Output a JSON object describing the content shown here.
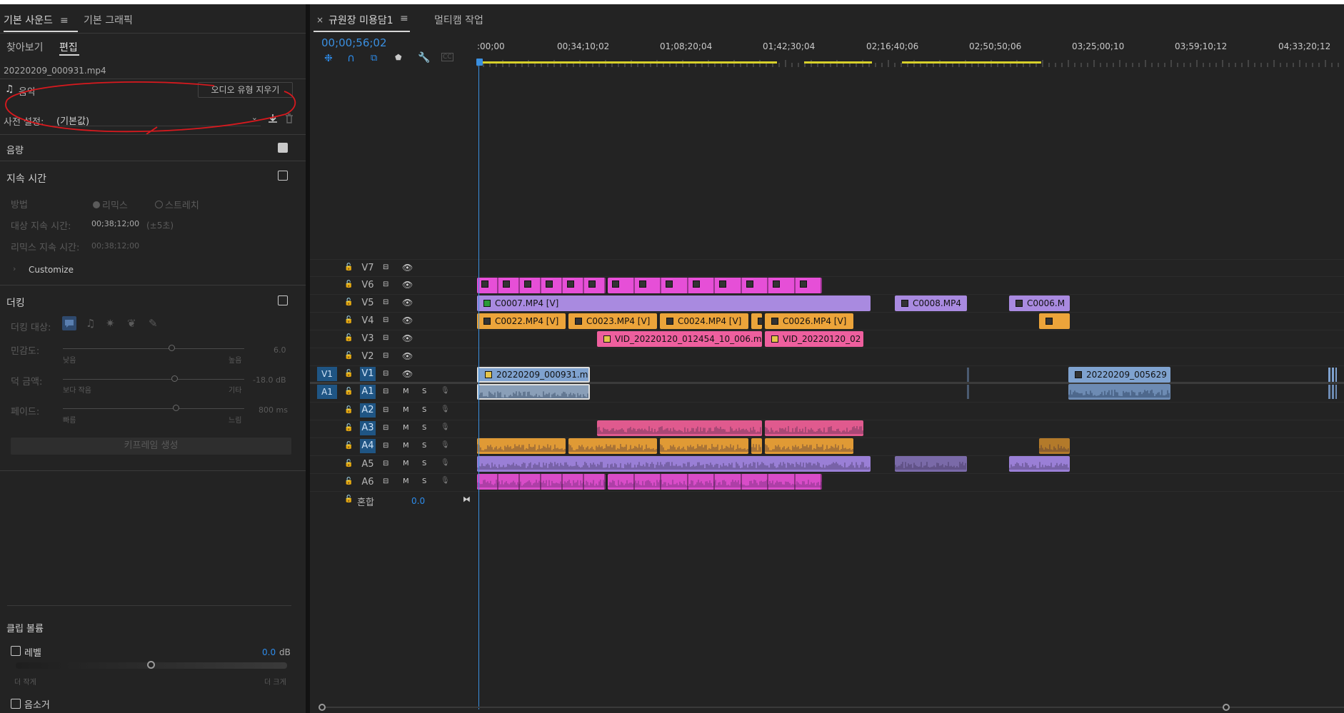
{
  "left_panel": {
    "tabs": [
      "기본 사운드",
      "기본 그래픽"
    ],
    "active_tab_menu": "≡",
    "subtabs": [
      "찾아보기",
      "편집"
    ],
    "filename": "20220209_000931.mp4",
    "music_label": "음악",
    "clear_type_button": "오디오 유형 지우기",
    "preset_label": "사전 설정:",
    "preset_value": "(기본값)",
    "loudness_label": "음량",
    "duration_section": "지속 시간",
    "method_label": "방법",
    "method_options": [
      "리믹스",
      "스트레치"
    ],
    "target_duration_label": "대상 지속 시간:",
    "target_duration_value": "00;38;12;00",
    "target_tolerance": "(±5초)",
    "remix_duration_label": "리믹스 지속 시간:",
    "remix_duration_value": "00;38;12;00",
    "customize_label": "Customize",
    "ducking_section": "더킹",
    "ducking_target_label": "더킹 대상:",
    "sensitivity_label": "민감도:",
    "sensitivity_low": "낮음",
    "sensitivity_high": "높음",
    "sensitivity_value": "6.0",
    "duck_amount_label": "덕 금액:",
    "duck_amount_low": "보다 작음",
    "duck_amount_high": "기타",
    "duck_amount_value": "-18.0 dB",
    "fade_label": "페이드:",
    "fade_low": "빠름",
    "fade_high": "느림",
    "fade_value": "800 ms",
    "generate_keyframes_button": "키프레임 생성",
    "clip_volume_section": "클립 볼륨",
    "level_label": "레벨",
    "level_value": "0.0",
    "level_unit": "dB",
    "level_fraction": 0.5,
    "quieter_label": "더 작게",
    "louder_label": "더 크게",
    "mute_label": "음소거"
  },
  "timeline": {
    "tabs": [
      "규원장 미용담1",
      "멀티캠 작업"
    ],
    "active_tab_menu": "≡",
    "close_icon": "×",
    "timecode": "00;00;56;02",
    "ruler_labels": [
      ":00;00",
      "00;34;10;02",
      "01;08;20;04",
      "01;42;30;04",
      "02;16;40;06",
      "02;50;50;06",
      "03;25;00;10",
      "03;59;10;12",
      "04;33;20;12"
    ],
    "video_tracks": [
      "V7",
      "V6",
      "V5",
      "V4",
      "V3",
      "V2",
      "V1"
    ],
    "audio_tracks": [
      "A1",
      "A2",
      "A3",
      "A4",
      "A5",
      "A6"
    ],
    "src_v1": "V1",
    "src_a1": "A1",
    "mute_label": "M",
    "solo_label": "S",
    "mix_label": "혼합",
    "mix_value": "0.0",
    "clip_labels": {
      "v5_1": "C0007.MP4 [V]",
      "v5_2": "C0008.MP4",
      "v5_3": "C0006.M",
      "v4_1": "C0022.MP4 [V]",
      "v4_2": "C0023.MP4 [V]",
      "v4_3": "C0024.MP4 [V]",
      "v4_4": "C0026.MP4 [V]",
      "v3_1": "VID_20220120_012454_10_006.m",
      "v3_2": "VID_20220120_02",
      "v1_1": "20220209_000931.m",
      "v1_2": "20220209_005629"
    },
    "colors": {
      "magenta": "#e64fd7",
      "lavender": "#a98ae0",
      "orange": "#eca43a",
      "pink": "#ee5f9e",
      "blue": "#7fa2cf",
      "accent": "#2d8ceb",
      "playhead": "#3a8fe0"
    }
  }
}
